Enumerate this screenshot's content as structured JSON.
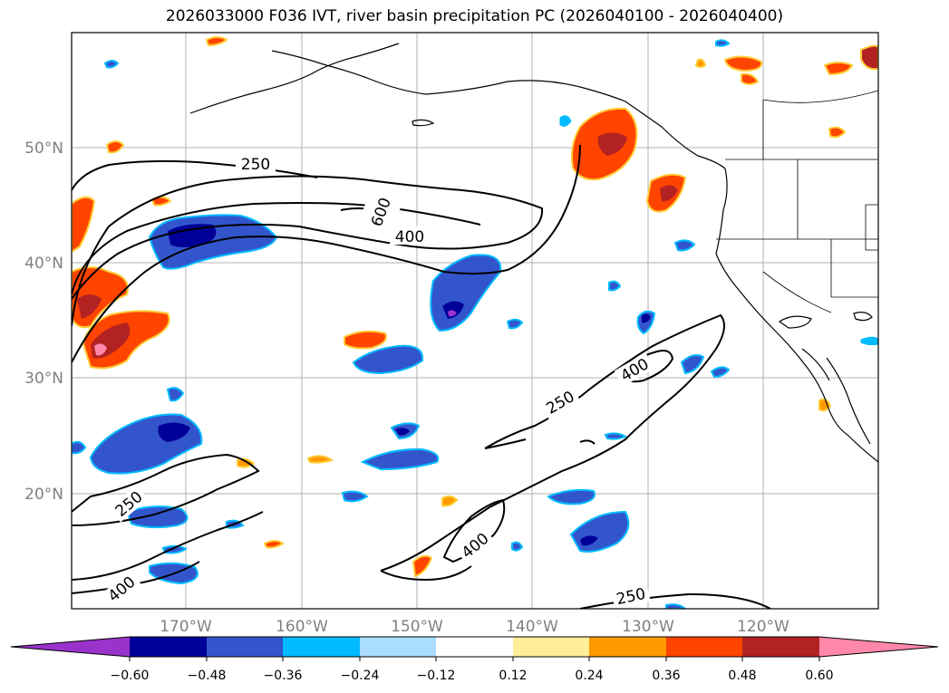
{
  "title": "2026033000 F036 IVT, river basin precipitation PC (2026040100 - 2026040400)",
  "lat_labels": [
    "50°N",
    "40°N",
    "30°N",
    "20°N"
  ],
  "lon_labels": [
    "170°W",
    "160°W",
    "150°W",
    "140°W",
    "130°W",
    "120°W"
  ],
  "colorbar": {
    "colors": [
      "#9933cc",
      "#000099",
      "#3355cc",
      "#00bbff",
      "#aaddff",
      "#ffffff",
      "#ffee99",
      "#ff9900",
      "#ff4400",
      "#b22222",
      "#ff88aa"
    ],
    "tick_labels": [
      "−0.60",
      "−0.48",
      "−0.36",
      "−0.24",
      "−0.12",
      "0.12",
      "0.24",
      "0.36",
      "0.48",
      "0.60"
    ]
  },
  "contour_labels": [
    "250",
    "600",
    "400",
    "400",
    "250",
    "250",
    "400",
    "400",
    "250"
  ]
}
